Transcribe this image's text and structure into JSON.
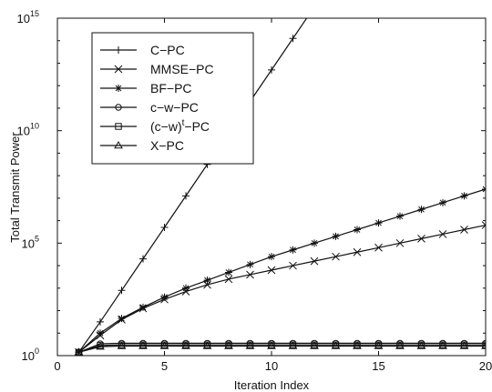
{
  "chart_data": {
    "type": "line",
    "title": "",
    "xlabel": "Iteration Index",
    "ylabel": "Total Transmit Power",
    "xlim": [
      0,
      20
    ],
    "ylim_log10": [
      0,
      15
    ],
    "yscale": "log",
    "grid": false,
    "legend_position": "top-left",
    "xticks": [
      "0",
      "5",
      "10",
      "15",
      "20"
    ],
    "yticks": [
      {
        "value": 1,
        "base": "10",
        "exp": "0"
      },
      {
        "value": 100000,
        "base": "10",
        "exp": "5"
      },
      {
        "value": 10000000000,
        "base": "10",
        "exp": "10"
      },
      {
        "value": 1000000000000000,
        "base": "10",
        "exp": "15"
      }
    ],
    "x": [
      1,
      2,
      3,
      4,
      5,
      6,
      7,
      8,
      9,
      10,
      11,
      12,
      13,
      14,
      15,
      16,
      17,
      18,
      19,
      20
    ],
    "series": [
      {
        "name": "C−PC",
        "marker": "plus",
        "values": [
          1.41,
          31.6,
          794,
          19953,
          501187,
          12600000.0,
          316000000.0,
          7940000000.0,
          200000000000.0,
          5010000000000.0,
          126000000000000.0,
          3160000000000000.0,
          7.94e+16,
          2e+18,
          5.01e+19,
          1.26e+21,
          3.16e+22,
          7.94e+23,
          2e+25,
          5.01e+26
        ]
      },
      {
        "name": "MMSE−PC",
        "marker": "x",
        "values": [
          1.41,
          7.94,
          39.8,
          126,
          316,
          708,
          1413,
          2512,
          3981,
          6310,
          10000,
          15849,
          25119,
          39811,
          63096,
          100000,
          158489,
          251189,
          398107,
          630957
        ]
      },
      {
        "name": "BF−PC",
        "marker": "star",
        "values": [
          1.41,
          10,
          44.7,
          141,
          398,
          1000,
          2239,
          5012,
          11220,
          25119,
          50119,
          100000,
          199526,
          398107,
          794328,
          1580000.0,
          3160000.0,
          6310000.0,
          12600000.0,
          25100000.0
        ]
      },
      {
        "name": "c−w−PC",
        "marker": "circle",
        "values": [
          1.41,
          3.35,
          3.55,
          3.55,
          3.55,
          3.55,
          3.55,
          3.55,
          3.55,
          3.55,
          3.55,
          3.55,
          3.55,
          3.55,
          3.55,
          3.55,
          3.55,
          3.55,
          3.55,
          3.55
        ]
      },
      {
        "name": "(c−w)",
        "name_sup": "t",
        "name_tail": "−PC",
        "marker": "square",
        "values": [
          1.41,
          2.82,
          3.0,
          3.0,
          3.0,
          3.0,
          3.0,
          3.0,
          3.0,
          3.0,
          3.0,
          3.0,
          3.0,
          3.0,
          3.0,
          3.0,
          3.0,
          3.0,
          3.0,
          3.0
        ]
      },
      {
        "name": "X−PC",
        "marker": "triangle",
        "values": [
          1.41,
          2.51,
          2.66,
          2.66,
          2.66,
          2.66,
          2.66,
          2.66,
          2.66,
          2.66,
          2.66,
          2.66,
          2.66,
          2.66,
          2.66,
          2.66,
          2.66,
          2.66,
          2.66,
          2.66
        ]
      }
    ]
  }
}
